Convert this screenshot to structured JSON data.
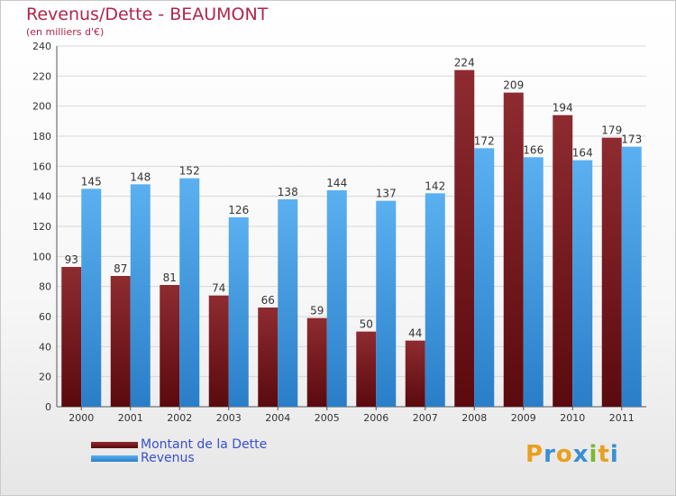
{
  "title": "Revenus/Dette - BEAUMONT",
  "subtitle": "(en milliers d'€)",
  "colors": {
    "dette": "#7a1a1e",
    "revenus": "#4aa0e6",
    "title": "#b0254a",
    "legend_text": "#3a4fd0"
  },
  "legend": {
    "dette_label": "Montant de la Dette",
    "revenus_label": "Revenus"
  },
  "logo": {
    "letters": [
      "P",
      "r",
      "o",
      "x",
      "i",
      "t",
      "i"
    ],
    "colors": [
      "#e8a020",
      "#3a8fd0",
      "#e8a020",
      "#3a8fd0",
      "#7ab830",
      "#e8a020",
      "#3a8fd0"
    ]
  },
  "chart_data": {
    "type": "bar",
    "title": "Revenus/Dette - BEAUMONT",
    "ylabel": "(en milliers d'€)",
    "xlabel": "",
    "ylim": [
      0,
      240
    ],
    "yticks": [
      0,
      20,
      40,
      60,
      80,
      100,
      120,
      140,
      160,
      180,
      200,
      220,
      240
    ],
    "grid": true,
    "categories": [
      "2000",
      "2001",
      "2002",
      "2003",
      "2004",
      "2005",
      "2006",
      "2007",
      "2008",
      "2009",
      "2010",
      "2011"
    ],
    "series": [
      {
        "name": "Montant de la Dette",
        "values": [
          93,
          87,
          81,
          74,
          66,
          59,
          50,
          44,
          224,
          209,
          194,
          179
        ]
      },
      {
        "name": "Revenus",
        "values": [
          145,
          148,
          152,
          126,
          138,
          144,
          137,
          142,
          172,
          166,
          164,
          173
        ]
      }
    ]
  }
}
